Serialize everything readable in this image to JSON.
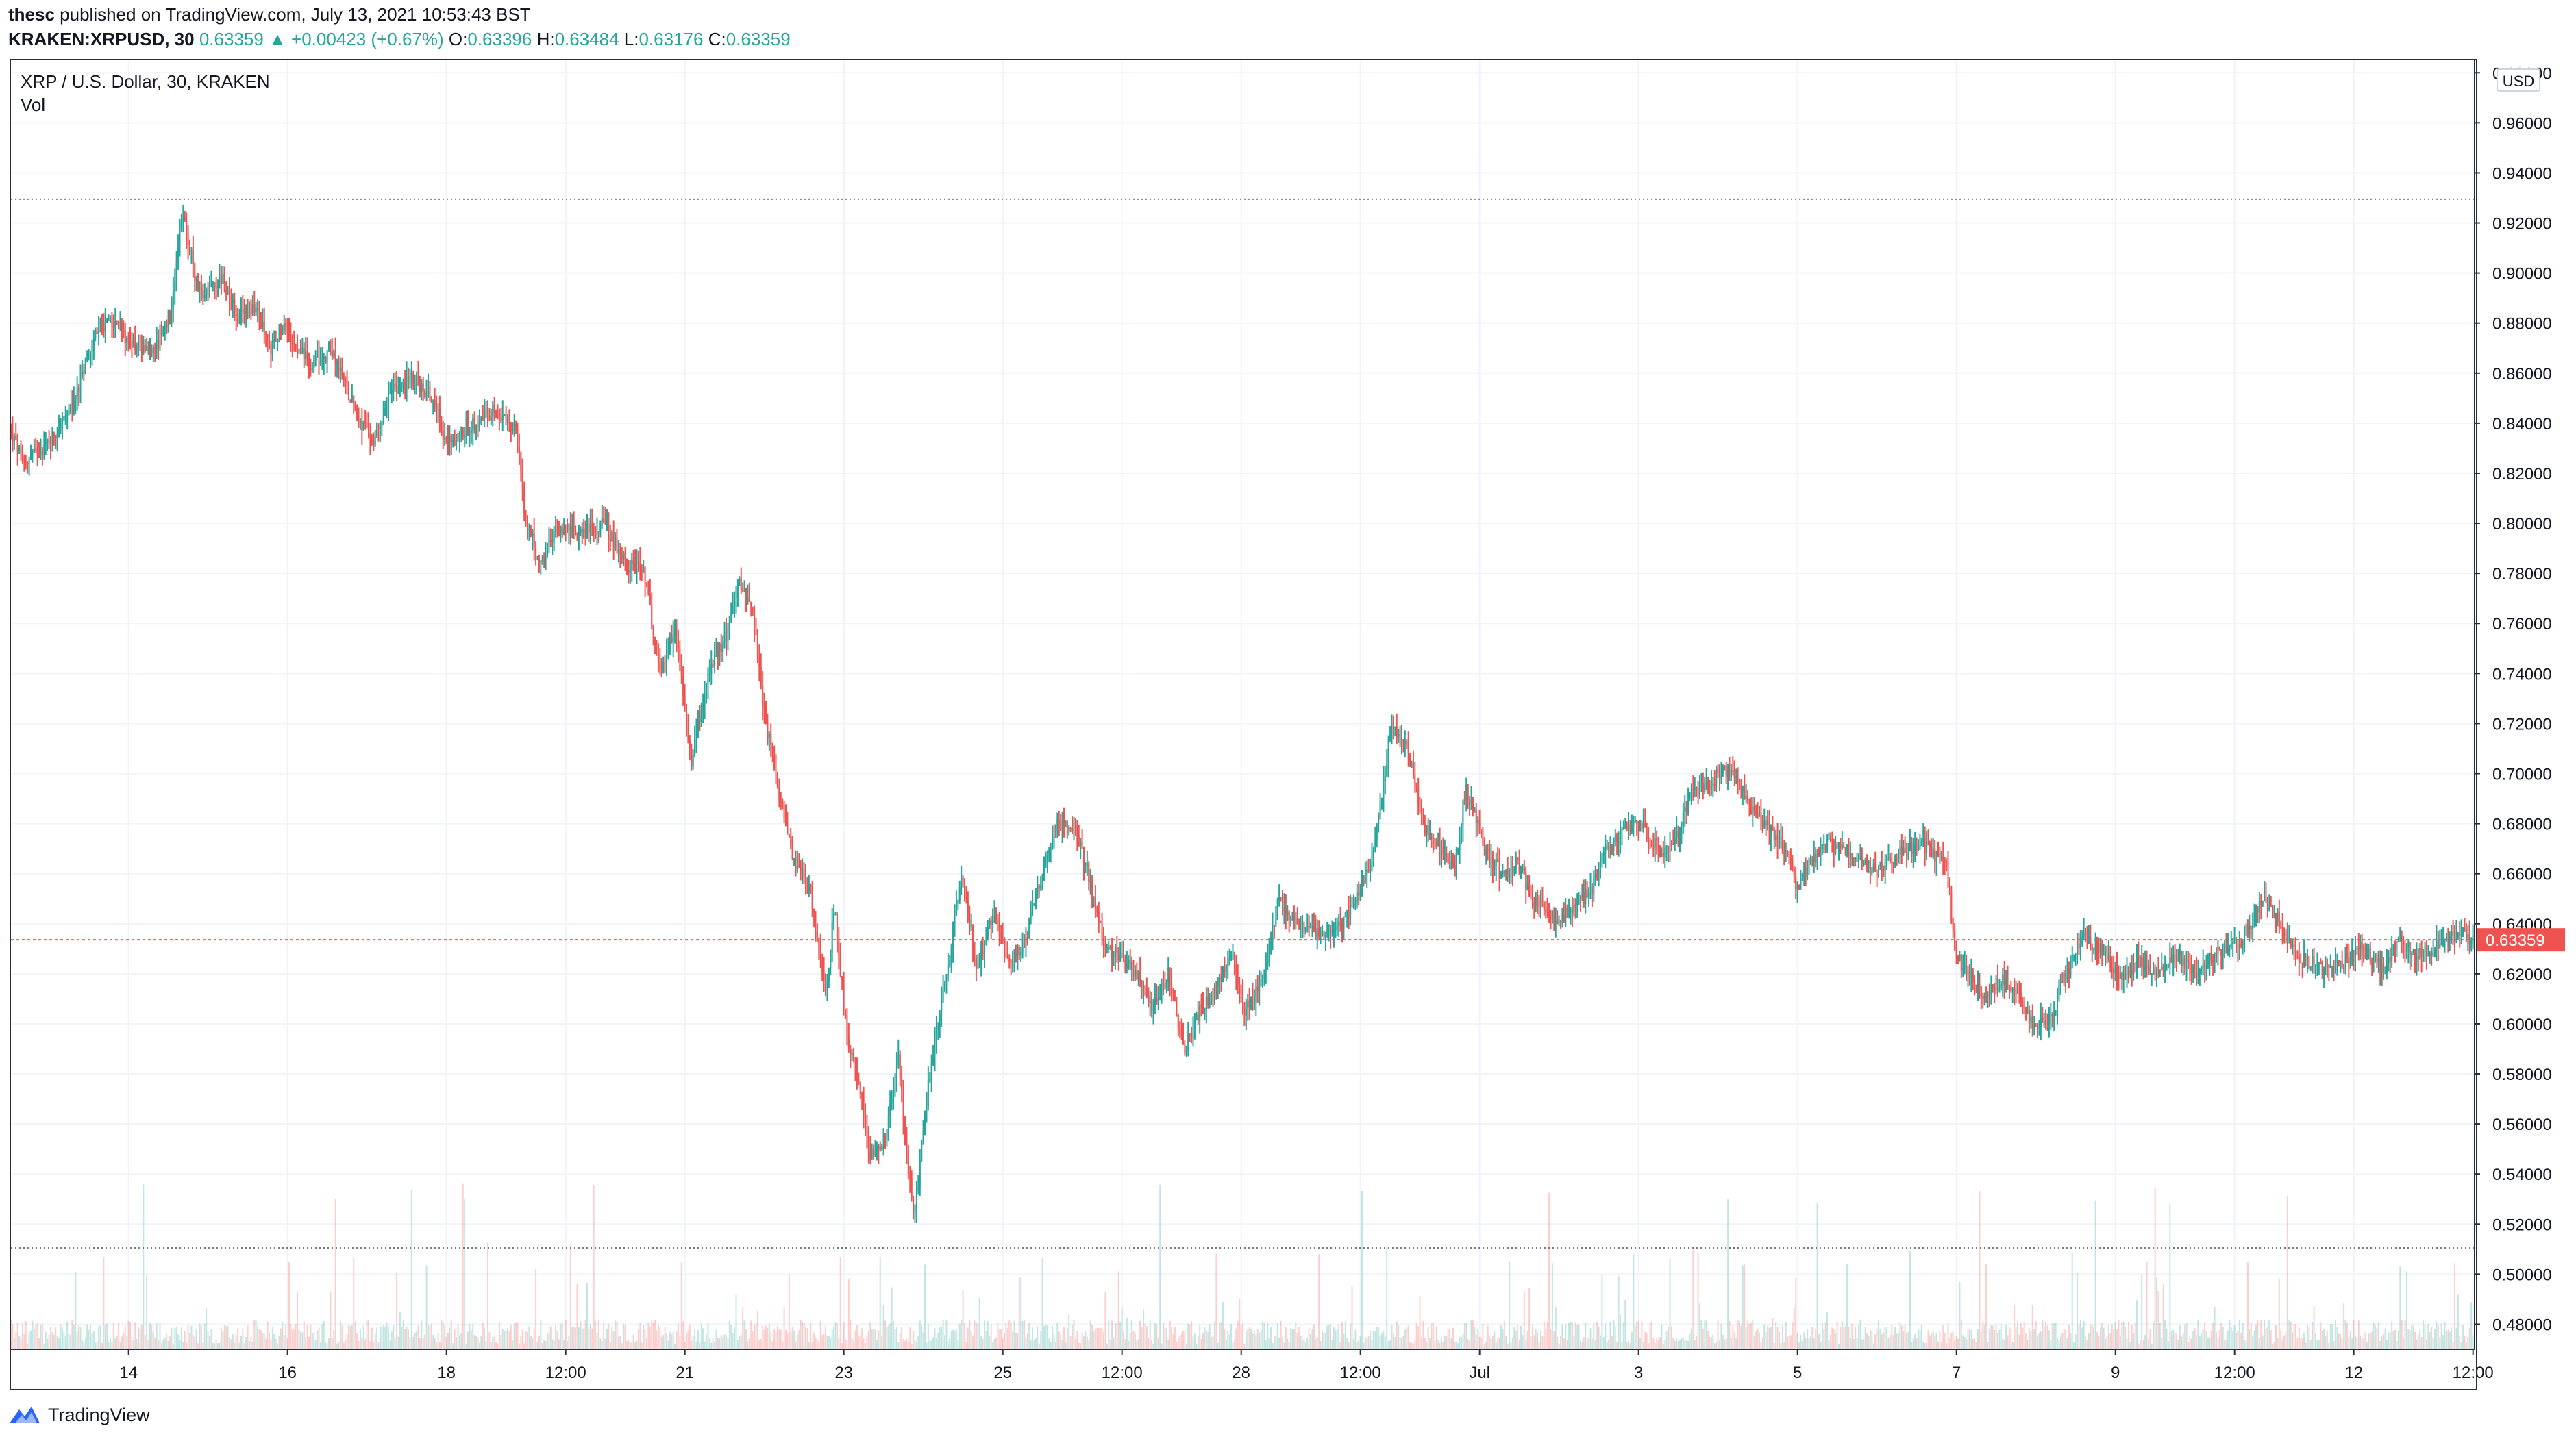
{
  "header": {
    "author": "thesc",
    "published_text": "published on TradingView.com, July 13, 2021 10:53:43 BST"
  },
  "symbol_line": {
    "symbol": "KRAKEN:XRPUSD, 30",
    "last": "0.63359",
    "arrow": "▲",
    "change": "+0.00423 (+0.67%)",
    "o_label": "O:",
    "o_value": "0.63396",
    "h_label": "H:",
    "h_value": "0.63484",
    "l_label": "L:",
    "l_value": "0.63176",
    "c_label": "C:",
    "c_value": "0.63359"
  },
  "legend": {
    "title": "XRP / U.S. Dollar, 30, KRAKEN",
    "volume_label": "Vol"
  },
  "price_axis": {
    "unit": "USD",
    "current_price_label": "0.63359"
  },
  "footer": {
    "brand": "TradingView",
    "logo_icon": "tradingview-logo-icon"
  },
  "colors": {
    "up": "#26a69a",
    "down": "#ef5350",
    "grid": "#f0f3fa",
    "text": "#131722",
    "price_line": "#ef5350"
  },
  "chart_data": {
    "type": "candlestick",
    "title": "XRP / U.S. Dollar, 30, KRAKEN",
    "interval": "30",
    "ylim": [
      0.47,
      0.985
    ],
    "yticks": [
      "0.98000",
      "0.96000",
      "0.94000",
      "0.92000",
      "0.90000",
      "0.88000",
      "0.86000",
      "0.84000",
      "0.82000",
      "0.80000",
      "0.78000",
      "0.76000",
      "0.74000",
      "0.72000",
      "0.70000",
      "0.68000",
      "0.66000",
      "0.64000",
      "0.62000",
      "0.60000",
      "0.58000",
      "0.56000",
      "0.54000",
      "0.52000",
      "0.50000",
      "0.48000"
    ],
    "xlim_days": [
      12.52,
      43.52
    ],
    "xticks": [
      {
        "label": "14",
        "day": 14
      },
      {
        "label": "16",
        "day": 16
      },
      {
        "label": "18",
        "day": 18
      },
      {
        "label": "12:00",
        "day": 19.5
      },
      {
        "label": "21",
        "day": 21
      },
      {
        "label": "23",
        "day": 23
      },
      {
        "label": "25",
        "day": 25
      },
      {
        "label": "12:00",
        "day": 26.5
      },
      {
        "label": "28",
        "day": 28
      },
      {
        "label": "12:00",
        "day": 29.5
      },
      {
        "label": "Jul",
        "day": 31
      },
      {
        "label": "3",
        "day": 33
      },
      {
        "label": "5",
        "day": 35
      },
      {
        "label": "7",
        "day": 37
      },
      {
        "label": "9",
        "day": 39
      },
      {
        "label": "12:00",
        "day": 40.5
      },
      {
        "label": "12",
        "day": 42
      },
      {
        "label": "12:00",
        "day": 43.5
      }
    ],
    "reference_lines": [
      {
        "name": "high-marker",
        "value": 0.9295
      },
      {
        "name": "low-marker",
        "value": 0.5105
      },
      {
        "name": "last-price",
        "value": 0.63359
      }
    ],
    "x_unit": "day of June 2021 (Jul = 31)",
    "price_path": [
      [
        12.52,
        0.838
      ],
      [
        12.7,
        0.824
      ],
      [
        13.0,
        0.832
      ],
      [
        13.3,
        0.845
      ],
      [
        13.6,
        0.875
      ],
      [
        13.8,
        0.882
      ],
      [
        14.0,
        0.874
      ],
      [
        14.3,
        0.868
      ],
      [
        14.55,
        0.88
      ],
      [
        14.7,
        0.925
      ],
      [
        14.9,
        0.892
      ],
      [
        15.2,
        0.898
      ],
      [
        15.4,
        0.882
      ],
      [
        15.6,
        0.887
      ],
      [
        15.8,
        0.87
      ],
      [
        16.0,
        0.878
      ],
      [
        16.3,
        0.864
      ],
      [
        16.6,
        0.868
      ],
      [
        16.9,
        0.843
      ],
      [
        17.1,
        0.832
      ],
      [
        17.3,
        0.852
      ],
      [
        17.6,
        0.858
      ],
      [
        17.9,
        0.848
      ],
      [
        18.0,
        0.832
      ],
      [
        18.3,
        0.838
      ],
      [
        18.6,
        0.845
      ],
      [
        18.9,
        0.838
      ],
      [
        19.0,
        0.805
      ],
      [
        19.2,
        0.782
      ],
      [
        19.4,
        0.798
      ],
      [
        19.7,
        0.797
      ],
      [
        20.0,
        0.8
      ],
      [
        20.3,
        0.783
      ],
      [
        20.5,
        0.782
      ],
      [
        20.7,
        0.74
      ],
      [
        20.9,
        0.758
      ],
      [
        21.1,
        0.705
      ],
      [
        21.3,
        0.738
      ],
      [
        21.55,
        0.756
      ],
      [
        21.7,
        0.778
      ],
      [
        21.9,
        0.76
      ],
      [
        22.0,
        0.728
      ],
      [
        22.2,
        0.692
      ],
      [
        22.4,
        0.665
      ],
      [
        22.6,
        0.653
      ],
      [
        22.8,
        0.61
      ],
      [
        22.9,
        0.648
      ],
      [
        23.05,
        0.598
      ],
      [
        23.25,
        0.568
      ],
      [
        23.35,
        0.548
      ],
      [
        23.55,
        0.555
      ],
      [
        23.7,
        0.588
      ],
      [
        23.9,
        0.52
      ],
      [
        24.1,
        0.58
      ],
      [
        24.35,
        0.628
      ],
      [
        24.5,
        0.66
      ],
      [
        24.7,
        0.622
      ],
      [
        24.9,
        0.645
      ],
      [
        25.1,
        0.625
      ],
      [
        25.3,
        0.633
      ],
      [
        25.5,
        0.658
      ],
      [
        25.7,
        0.68
      ],
      [
        25.9,
        0.68
      ],
      [
        26.1,
        0.66
      ],
      [
        26.3,
        0.63
      ],
      [
        26.5,
        0.627
      ],
      [
        26.7,
        0.62
      ],
      [
        26.9,
        0.607
      ],
      [
        27.1,
        0.62
      ],
      [
        27.3,
        0.59
      ],
      [
        27.5,
        0.605
      ],
      [
        27.7,
        0.615
      ],
      [
        27.9,
        0.628
      ],
      [
        28.05,
        0.605
      ],
      [
        28.25,
        0.615
      ],
      [
        28.5,
        0.65
      ],
      [
        28.7,
        0.64
      ],
      [
        29.0,
        0.635
      ],
      [
        29.3,
        0.64
      ],
      [
        29.5,
        0.652
      ],
      [
        29.7,
        0.67
      ],
      [
        29.9,
        0.718
      ],
      [
        30.1,
        0.712
      ],
      [
        30.3,
        0.68
      ],
      [
        30.5,
        0.67
      ],
      [
        30.7,
        0.66
      ],
      [
        30.85,
        0.695
      ],
      [
        31.1,
        0.668
      ],
      [
        31.3,
        0.66
      ],
      [
        31.5,
        0.664
      ],
      [
        31.7,
        0.65
      ],
      [
        32.0,
        0.64
      ],
      [
        32.2,
        0.647
      ],
      [
        32.4,
        0.652
      ],
      [
        32.6,
        0.668
      ],
      [
        32.8,
        0.676
      ],
      [
        33.05,
        0.68
      ],
      [
        33.3,
        0.668
      ],
      [
        33.5,
        0.675
      ],
      [
        33.7,
        0.692
      ],
      [
        34.0,
        0.699
      ],
      [
        34.2,
        0.702
      ],
      [
        34.4,
        0.688
      ],
      [
        34.6,
        0.68
      ],
      [
        34.9,
        0.668
      ],
      [
        35.0,
        0.655
      ],
      [
        35.2,
        0.665
      ],
      [
        35.4,
        0.672
      ],
      [
        35.7,
        0.668
      ],
      [
        36.0,
        0.662
      ],
      [
        36.3,
        0.668
      ],
      [
        36.6,
        0.672
      ],
      [
        36.9,
        0.662
      ],
      [
        37.0,
        0.627
      ],
      [
        37.2,
        0.62
      ],
      [
        37.35,
        0.61
      ],
      [
        37.6,
        0.618
      ],
      [
        37.8,
        0.612
      ],
      [
        38.0,
        0.598
      ],
      [
        38.2,
        0.602
      ],
      [
        38.4,
        0.62
      ],
      [
        38.6,
        0.635
      ],
      [
        38.9,
        0.628
      ],
      [
        39.1,
        0.618
      ],
      [
        39.3,
        0.625
      ],
      [
        39.6,
        0.62
      ],
      [
        39.8,
        0.628
      ],
      [
        40.0,
        0.62
      ],
      [
        40.3,
        0.628
      ],
      [
        40.6,
        0.634
      ],
      [
        40.9,
        0.65
      ],
      [
        41.1,
        0.64
      ],
      [
        41.3,
        0.628
      ],
      [
        41.6,
        0.622
      ],
      [
        41.9,
        0.625
      ],
      [
        42.1,
        0.63
      ],
      [
        42.4,
        0.622
      ],
      [
        42.6,
        0.634
      ],
      [
        42.8,
        0.627
      ],
      [
        43.2,
        0.633
      ],
      [
        43.4,
        0.636
      ],
      [
        43.52,
        0.6336
      ]
    ]
  }
}
